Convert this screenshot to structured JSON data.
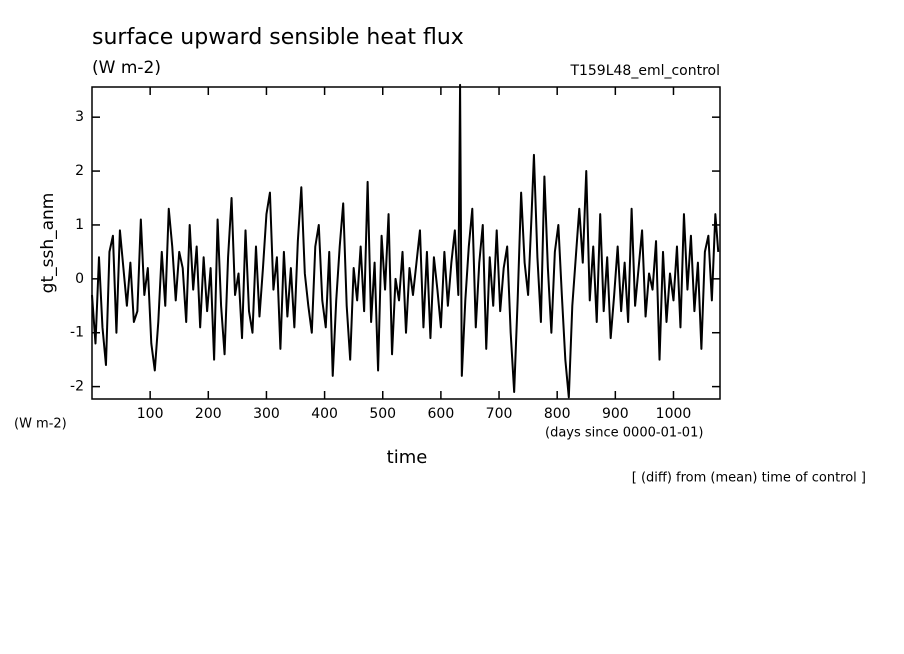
{
  "chart_data": {
    "type": "line",
    "title": "surface upward sensible heat flux",
    "units": "(W m-2)",
    "run_label": "T159L48_eml_control",
    "ylabel": "gt_ssh_anm",
    "yunits": "(W m-2)",
    "xlabel": "time",
    "xunits": "(days since 0000-01-01)",
    "note": "[ (diff) from (mean) time of control ]",
    "xlim": [
      0,
      1080
    ],
    "ylim": [
      -2.23,
      3.56
    ],
    "xticks": [
      100,
      200,
      300,
      400,
      500,
      600,
      700,
      800,
      900,
      1000
    ],
    "yticks": [
      -2,
      -1,
      0,
      1,
      2,
      3
    ],
    "color": "#000000",
    "x": [
      0,
      6,
      12,
      18,
      24,
      30,
      36,
      42,
      48,
      54,
      60,
      66,
      72,
      78,
      84,
      90,
      96,
      102,
      108,
      114,
      120,
      126,
      132,
      138,
      144,
      150,
      156,
      162,
      168,
      174,
      180,
      186,
      192,
      198,
      204,
      210,
      216,
      222,
      228,
      234,
      240,
      246,
      252,
      258,
      264,
      270,
      276,
      282,
      288,
      294,
      300,
      306,
      312,
      318,
      324,
      330,
      336,
      342,
      348,
      354,
      360,
      366,
      372,
      378,
      384,
      390,
      396,
      402,
      408,
      414,
      420,
      426,
      432,
      438,
      444,
      450,
      456,
      462,
      468,
      474,
      480,
      486,
      492,
      498,
      504,
      510,
      516,
      522,
      528,
      534,
      540,
      546,
      552,
      558,
      564,
      570,
      576,
      582,
      588,
      594,
      600,
      606,
      612,
      618,
      624,
      630,
      633,
      636,
      642,
      648,
      654,
      660,
      666,
      672,
      678,
      684,
      690,
      696,
      702,
      708,
      714,
      720,
      726,
      732,
      738,
      744,
      750,
      756,
      760,
      766,
      772,
      778,
      784,
      790,
      796,
      802,
      808,
      814,
      820,
      826,
      832,
      838,
      844,
      850,
      856,
      862,
      868,
      874,
      880,
      886,
      892,
      898,
      904,
      910,
      916,
      922,
      928,
      934,
      940,
      946,
      952,
      958,
      964,
      970,
      976,
      982,
      988,
      994,
      1000,
      1006,
      1012,
      1018,
      1024,
      1030,
      1036,
      1042,
      1048,
      1054,
      1060,
      1066,
      1072,
      1077
    ],
    "values": [
      -0.3,
      -1.2,
      0.4,
      -0.9,
      -1.6,
      0.5,
      0.8,
      -1.0,
      0.9,
      0.2,
      -0.5,
      0.3,
      -0.8,
      -0.6,
      1.1,
      -0.3,
      0.2,
      -1.2,
      -1.7,
      -0.8,
      0.5,
      -0.5,
      1.3,
      0.6,
      -0.4,
      0.5,
      0.2,
      -0.8,
      1.0,
      -0.2,
      0.6,
      -0.9,
      0.4,
      -0.6,
      0.2,
      -1.5,
      1.1,
      -0.5,
      -1.4,
      0.4,
      1.5,
      -0.3,
      0.1,
      -1.1,
      0.9,
      -0.6,
      -1.0,
      0.6,
      -0.7,
      0.2,
      1.2,
      1.6,
      -0.2,
      0.4,
      -1.3,
      0.5,
      -0.7,
      0.2,
      -0.9,
      0.7,
      1.7,
      0.1,
      -0.5,
      -1.0,
      0.6,
      1.0,
      -0.4,
      -0.9,
      0.5,
      -1.8,
      -0.4,
      0.6,
      1.4,
      -0.5,
      -1.5,
      0.2,
      -0.4,
      0.6,
      -0.6,
      1.8,
      -0.8,
      0.3,
      -1.7,
      0.8,
      -0.2,
      1.2,
      -1.4,
      0.0,
      -0.4,
      0.5,
      -1.0,
      0.2,
      -0.3,
      0.3,
      0.9,
      -0.9,
      0.5,
      -1.1,
      0.4,
      -0.2,
      -0.9,
      0.5,
      -0.5,
      0.3,
      0.9,
      -0.3,
      3.6,
      -1.8,
      -0.4,
      0.6,
      1.3,
      -0.9,
      0.3,
      1.0,
      -1.3,
      0.4,
      -0.5,
      0.9,
      -0.6,
      0.2,
      0.6,
      -1.0,
      -2.1,
      -0.4,
      1.6,
      0.3,
      -0.3,
      1.2,
      2.3,
      0.4,
      -0.8,
      1.9,
      0.2,
      -1.0,
      0.5,
      1.0,
      -0.3,
      -1.5,
      -2.2,
      -0.5,
      0.4,
      1.3,
      0.3,
      2.0,
      -0.4,
      0.6,
      -0.8,
      1.2,
      -0.6,
      0.4,
      -1.1,
      -0.3,
      0.6,
      -0.6,
      0.3,
      -0.8,
      1.3,
      -0.5,
      0.2,
      0.9,
      -0.7,
      0.1,
      -0.2,
      0.7,
      -1.5,
      0.5,
      -0.8,
      0.1,
      -0.4,
      0.6,
      -0.9,
      1.2,
      -0.2,
      0.8,
      -0.6,
      0.3,
      -1.3,
      0.5,
      0.8,
      -0.4,
      1.2,
      0.5
    ]
  }
}
